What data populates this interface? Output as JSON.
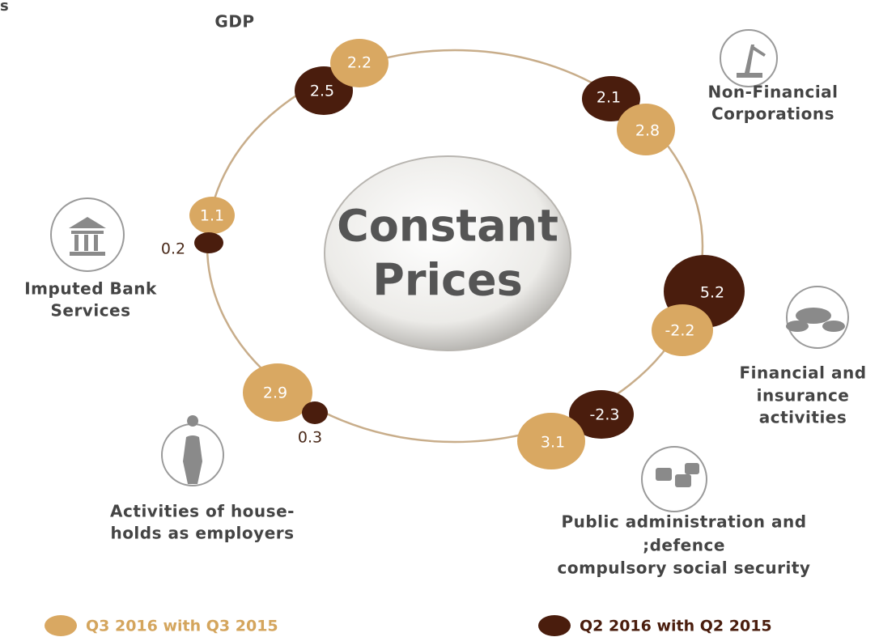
{
  "corner_text": "s",
  "center": {
    "lines": [
      "Constant",
      "Prices"
    ]
  },
  "nodes": [
    {
      "label": [
        "GDP"
      ],
      "q3": "2.2",
      "q2": "2.5"
    },
    {
      "label": [
        "Non-Financial",
        "Corporations"
      ],
      "q3": "2.8",
      "q2": "2.1"
    },
    {
      "label": [
        "Financial and",
        "insurance",
        "activities"
      ],
      "q3": "-2.2",
      "q2": "5.2"
    },
    {
      "label": [
        "Public administration and",
        ";defence",
        "compulsory social security"
      ],
      "q3": "3.1",
      "q2": "-2.3"
    },
    {
      "label": [
        "Activities of house-",
        "holds as employers"
      ],
      "q3": "2.9",
      "q2": "0.3"
    },
    {
      "label": [
        "Imputed Bank",
        "Services"
      ],
      "q3": "1.1",
      "q2": "0.2"
    }
  ],
  "legend": [
    "Q3 2016 with Q3 2015",
    "Q2 2016 with Q2  2015"
  ]
}
